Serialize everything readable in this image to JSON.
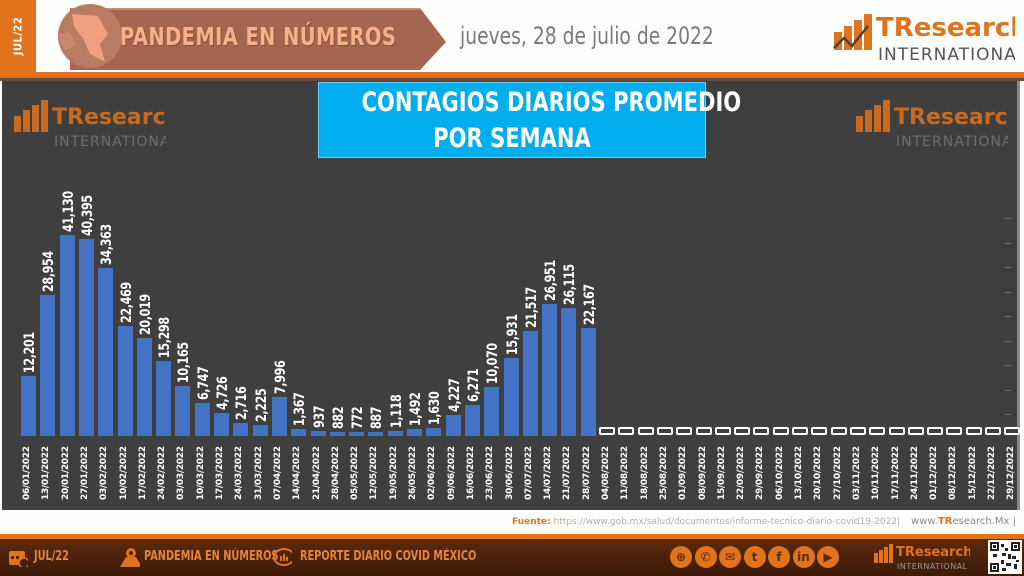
{
  "header": {
    "tab_label": "JUL/22",
    "title": "PANDEMIA EN NÚMEROS",
    "date": "jueves, 28 de julio de 2022",
    "logo_main": "TResearch",
    "logo_sub": "INTERNATIONAL"
  },
  "chart_title": {
    "line1": "CONTAGIOS DIARIOS PROMEDIO",
    "line2": "POR SEMANA"
  },
  "watermark": {
    "main": "TResearch",
    "sub": "INTERNATIONAL"
  },
  "colors": {
    "accent_orange": "#e0731c",
    "bar_blue": "#4472c4",
    "panel_bg": "#3f3f3f",
    "title_cyan": "#00aeef",
    "footer_brown": "#4a200c"
  },
  "chart_data": {
    "type": "bar",
    "title": "CONTAGIOS DIARIOS PROMEDIO POR SEMANA",
    "xlabel": "",
    "ylabel": "",
    "ylim": [
      0,
      45000
    ],
    "grid": false,
    "legend": null,
    "categories": [
      "06/01/2022",
      "13/01/2022",
      "20/01/2022",
      "27/01/2022",
      "03/02/2022",
      "10/02/2022",
      "17/02/2022",
      "24/02/2022",
      "03/03/2022",
      "10/03/2022",
      "17/03/2022",
      "24/03/2022",
      "31/03/2022",
      "07/04/2022",
      "14/04/2022",
      "21/04/2022",
      "28/04/2022",
      "05/05/2022",
      "12/05/2022",
      "19/05/2022",
      "26/05/2022",
      "02/06/2022",
      "09/06/2022",
      "16/06/2022",
      "23/06/2022",
      "30/06/2022",
      "07/07/2022",
      "14/07/2022",
      "21/07/2022",
      "28/07/2022",
      "04/08/2022",
      "11/08/2022",
      "18/08/2022",
      "25/08/2022",
      "01/09/2022",
      "08/09/2022",
      "15/09/2022",
      "22/09/2022",
      "29/09/2022",
      "06/10/2022",
      "13/10/2022",
      "20/10/2022",
      "27/10/2022",
      "03/11/2022",
      "10/11/2022",
      "17/11/2022",
      "24/11/2022",
      "01/12/2022",
      "08/12/2022",
      "15/12/2022",
      "22/12/2022",
      "29/12/2022"
    ],
    "values": [
      12201,
      28954,
      41130,
      40395,
      34363,
      22469,
      20019,
      15298,
      10165,
      6747,
      4726,
      2716,
      2225,
      7996,
      1367,
      937,
      882,
      772,
      887,
      1118,
      1492,
      1630,
      4227,
      6271,
      10070,
      15931,
      21517,
      26951,
      26115,
      22167,
      0,
      0,
      0,
      0,
      0,
      0,
      0,
      0,
      0,
      0,
      0,
      0,
      0,
      0,
      0,
      0,
      0,
      0,
      0,
      0,
      0,
      0
    ],
    "value_labels": [
      "12,201",
      "28,954",
      "41,130",
      "40,395",
      "34,363",
      "22,469",
      "20,019",
      "15,298",
      "10,165",
      "6,747",
      "4,726",
      "2,716",
      "2,225",
      "7,996",
      "1,367",
      "937",
      "882",
      "772",
      "887",
      "1,118",
      "1,492",
      "1,630",
      "4,227",
      "6,271",
      "10,070",
      "15,931",
      "21,517",
      "26,951",
      "26,115",
      "22,167",
      "0",
      "0",
      "0",
      "0",
      "0",
      "0",
      "0",
      "0",
      "0",
      "0",
      "0",
      "0",
      "0",
      "0",
      "0",
      "0",
      "0",
      "0",
      "0",
      "0",
      "0",
      "0"
    ]
  },
  "source": {
    "label": "Fuente:",
    "url": "https://www.gob.mx/salud/documentos/informe-tecnico-diario-covid19-2022|",
    "site_prefix": "www.",
    "site_brand": "TR",
    "site_rest": "esearch.Mx |"
  },
  "footer": {
    "date_label": "JUL/22",
    "section_label": "PANDEMIA EN NÚMEROS",
    "report_label": "REPORTE DIARIO COVID MÉXICO",
    "social_icons": [
      "globe",
      "whatsapp",
      "email",
      "twitter",
      "facebook",
      "linkedin",
      "youtube"
    ],
    "social_glyphs": [
      "⊕",
      "✆",
      "✉",
      "t",
      "f",
      "in",
      "▶"
    ],
    "logo_main": "TResearch",
    "logo_sub": "INTERNATIONAL"
  }
}
